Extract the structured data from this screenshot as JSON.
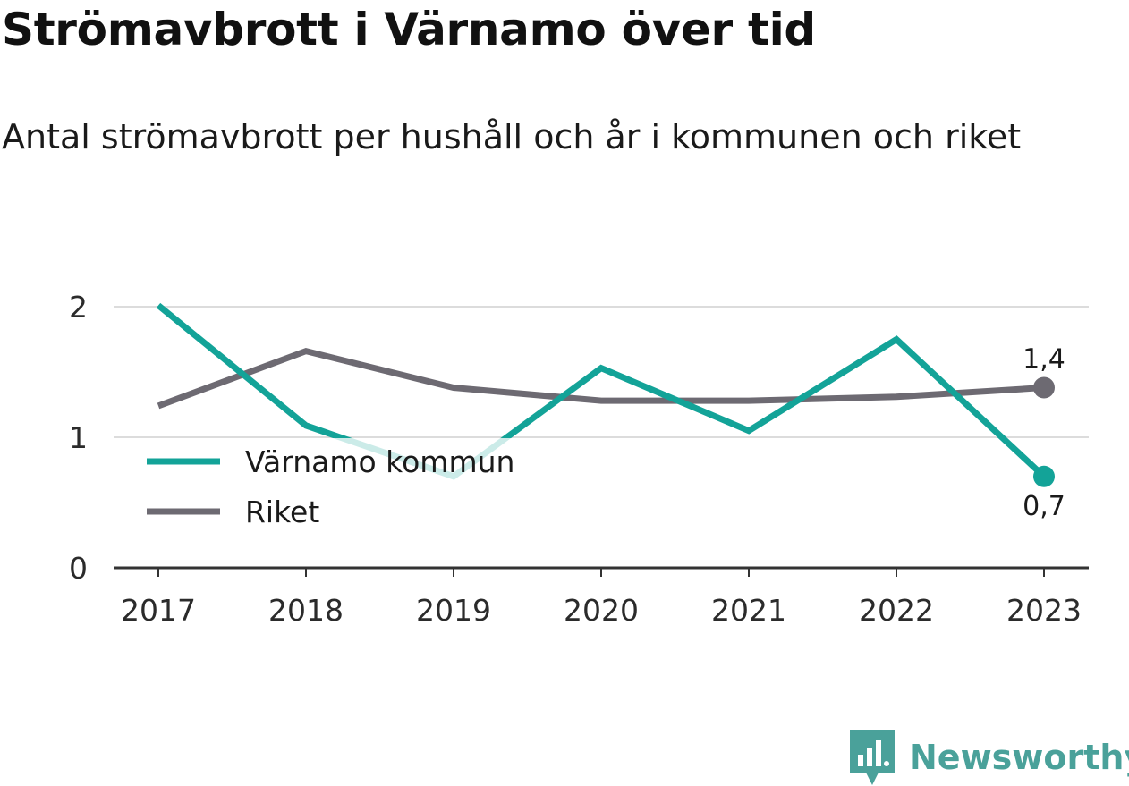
{
  "title": "Strömavbrott i Värnamo över tid",
  "subtitle": "Antal strömavbrott per hushåll och år i kommunen och riket",
  "brand": {
    "name": "Newsworthy",
    "icon": "newsworthy-logo-icon",
    "color": "#4aa19a"
  },
  "chart_data": {
    "type": "line",
    "title": "Strömavbrott i Värnamo över tid",
    "subtitle": "Antal strömavbrott per hushåll och år i kommunen och riket",
    "xlabel": "",
    "ylabel": "",
    "categories": [
      "2017",
      "2018",
      "2019",
      "2020",
      "2021",
      "2022",
      "2023"
    ],
    "ylim": [
      0,
      2
    ],
    "yticks": [
      0,
      1,
      2
    ],
    "ytick_labels": [
      "0",
      "1",
      "2"
    ],
    "grid": true,
    "legend_position": "bottom-left",
    "series": [
      {
        "name": "Värnamo kommun",
        "color": "#13a398",
        "values": [
          2.01,
          1.09,
          0.7,
          1.53,
          1.05,
          1.75,
          0.7
        ],
        "end_label": "0,7"
      },
      {
        "name": "Riket",
        "color": "#6d6a72",
        "values": [
          1.24,
          1.66,
          1.38,
          1.28,
          1.28,
          1.31,
          1.38
        ],
        "end_label": "1,4"
      }
    ]
  }
}
